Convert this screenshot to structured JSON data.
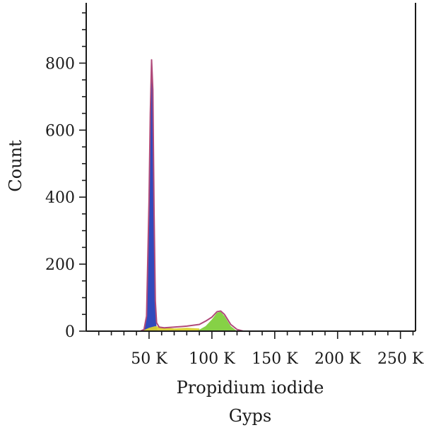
{
  "chart_data": {
    "type": "area",
    "title": "Gyps",
    "xlabel": "Propidium iodide",
    "ylabel": "Count",
    "xlim": [
      0,
      262000
    ],
    "ylim": [
      0,
      980
    ],
    "x_ticks": [
      {
        "value": 50000,
        "label": "50 K"
      },
      {
        "value": 100000,
        "label": "100 K"
      },
      {
        "value": 150000,
        "label": "150 K"
      },
      {
        "value": 200000,
        "label": "200 K"
      },
      {
        "value": 250000,
        "label": "250 K"
      }
    ],
    "y_ticks": [
      {
        "value": 0,
        "label": "0"
      },
      {
        "value": 200,
        "label": "200"
      },
      {
        "value": 400,
        "label": "400"
      },
      {
        "value": 600,
        "label": "600"
      },
      {
        "value": 800,
        "label": "800"
      }
    ],
    "grid": false,
    "series": [
      {
        "color": "#2740b8",
        "x": [
          46000,
          48000,
          50000,
          51000,
          52000,
          53000,
          54000,
          55000,
          56000,
          57000
        ],
        "y": [
          0,
          40,
          380,
          640,
          790,
          700,
          350,
          80,
          10,
          0
        ]
      },
      {
        "color": "#d9d030",
        "x": [
          44000,
          50000,
          55000,
          60000,
          70000,
          80000,
          90000
        ],
        "y": [
          0,
          10,
          15,
          12,
          8,
          10,
          8
        ]
      },
      {
        "color": "#7fcf3c",
        "x": [
          88000,
          95000,
          100000,
          104000,
          107000,
          110000,
          115000,
          120000
        ],
        "y": [
          0,
          15,
          35,
          55,
          58,
          45,
          15,
          0
        ]
      },
      {
        "color": "#b04a7a",
        "x": [
          0,
          43000,
          46000,
          48000,
          50000,
          51000,
          52000,
          53000,
          54000,
          55000,
          56000,
          58000,
          62000,
          70000,
          80000,
          90000,
          95000,
          100000,
          104000,
          107000,
          110000,
          115000,
          120000,
          125000,
          262000
        ],
        "y": [
          0,
          0,
          5,
          45,
          390,
          650,
          810,
          720,
          360,
          90,
          25,
          12,
          10,
          12,
          15,
          20,
          30,
          42,
          58,
          60,
          50,
          20,
          5,
          0,
          0
        ]
      }
    ]
  }
}
